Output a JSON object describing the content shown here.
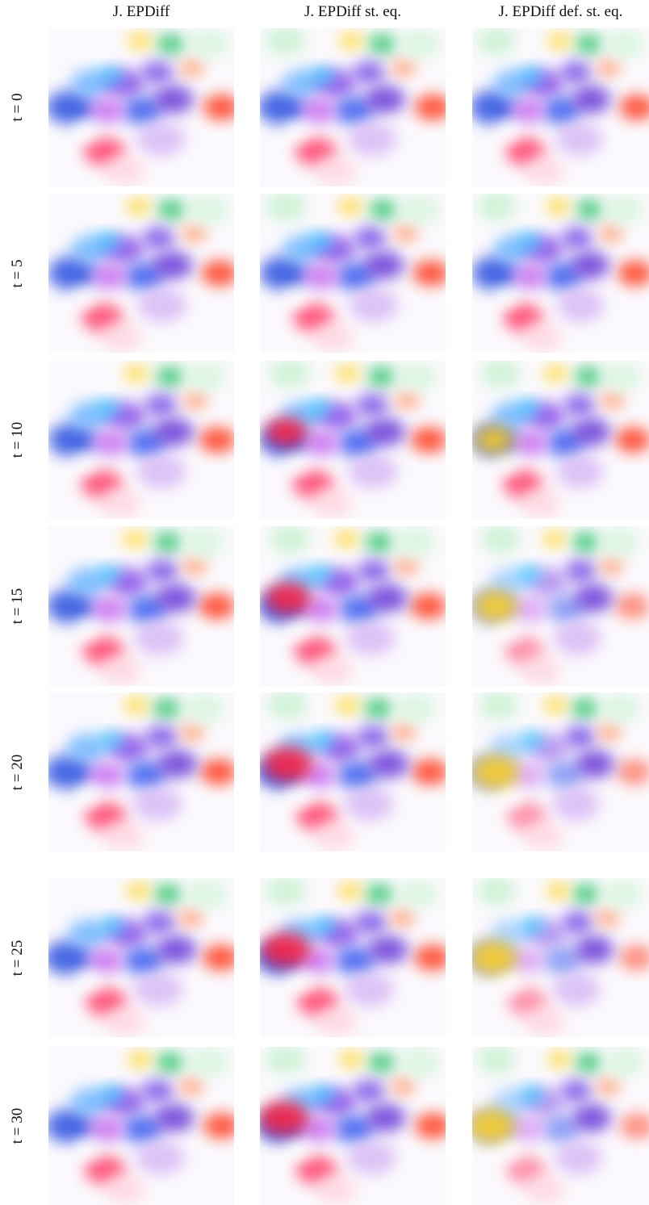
{
  "columns": [
    "J. EPDiff",
    "J. EPDiff st. eq.",
    "J. EPDiff def. st. eq."
  ],
  "rows": [
    "t = 0",
    "t = 5",
    "t = 10",
    "t = 15",
    "t = 20",
    "t = 25",
    "t = 30"
  ]
}
